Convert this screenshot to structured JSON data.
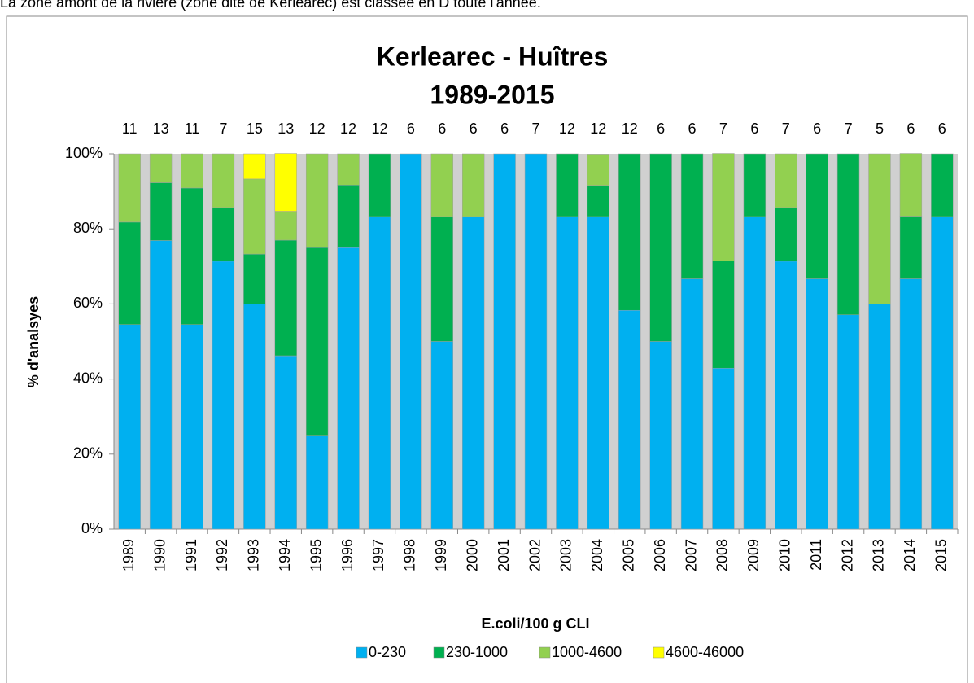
{
  "page_text": "La zone amont de la rivière (zone dite de Kerlearec) est classée en D toute l'année.",
  "chart_data": {
    "type": "stacked_bar",
    "title": "Kerlearec - Huîtres",
    "subtitle": "1989-2015",
    "y_label": "% d'analsyes",
    "x_label": "E.coli/100 g CLI",
    "categories": [
      "1989",
      "1990",
      "1991",
      "1992",
      "1993",
      "1994",
      "1995",
      "1996",
      "1997",
      "1998",
      "1999",
      "2000",
      "2001",
      "2002",
      "2003",
      "2004",
      "2005",
      "2006",
      "2007",
      "2008",
      "2009",
      "2010",
      "2011",
      "2012",
      "2013",
      "2014",
      "2015"
    ],
    "bar_labels": [
      11,
      13,
      11,
      7,
      15,
      13,
      12,
      12,
      12,
      6,
      6,
      6,
      6,
      7,
      12,
      12,
      12,
      6,
      6,
      7,
      6,
      7,
      6,
      7,
      5,
      6,
      6
    ],
    "series": [
      {
        "name": "0-230",
        "color": "#00b0f0",
        "values": [
          54.5,
          76.9,
          54.5,
          71.4,
          60,
          46.2,
          25,
          75,
          83.3,
          100,
          50,
          83.3,
          100,
          100,
          83.3,
          83.3,
          58.3,
          50,
          66.7,
          42.9,
          83.3,
          71.4,
          66.7,
          57.1,
          60,
          66.7,
          83.3
        ]
      },
      {
        "name": "230-1000",
        "color": "#00b050",
        "values": [
          27.3,
          15.4,
          36.4,
          14.3,
          13.3,
          30.8,
          50,
          16.7,
          16.7,
          0,
          33.3,
          0,
          0,
          0,
          16.7,
          8.3,
          41.7,
          50,
          33.3,
          28.6,
          16.7,
          14.3,
          33.3,
          42.9,
          0,
          16.7,
          16.7
        ]
      },
      {
        "name": "1000-4600",
        "color": "#92d050",
        "values": [
          18.2,
          7.7,
          9.1,
          14.3,
          20,
          7.7,
          25,
          8.3,
          0,
          0,
          16.7,
          16.7,
          0,
          0,
          0,
          8.3,
          0,
          0,
          0,
          28.6,
          0,
          14.3,
          0,
          0,
          40,
          16.7,
          0
        ]
      },
      {
        "name": "4600-46000",
        "color": "#ffff00",
        "values": [
          0,
          0,
          0,
          0,
          6.7,
          15.4,
          0,
          0,
          0,
          0,
          0,
          0,
          0,
          0,
          0,
          0,
          0,
          0,
          0,
          0,
          0,
          0,
          0,
          0,
          0,
          0,
          0
        ]
      }
    ],
    "ylim": [
      0,
      100
    ],
    "yticks": [
      {
        "value": 0,
        "label": "0%"
      },
      {
        "value": 20,
        "label": "20%"
      },
      {
        "value": 40,
        "label": "40%"
      },
      {
        "value": 60,
        "label": "60%"
      },
      {
        "value": 80,
        "label": "80%"
      },
      {
        "value": 100,
        "label": "100%"
      }
    ],
    "plot_background": "#d0d0d0",
    "legend": "bottom"
  }
}
